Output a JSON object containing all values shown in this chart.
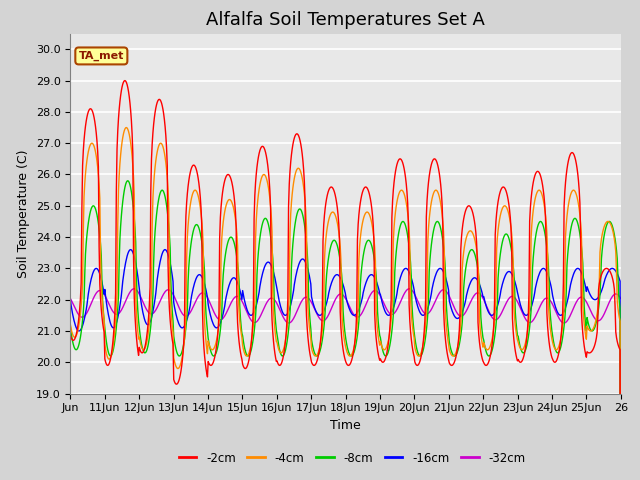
{
  "title": "Alfalfa Soil Temperatures Set A",
  "xlabel": "Time",
  "ylabel": "Soil Temperature (C)",
  "ylim": [
    19.0,
    30.5
  ],
  "yticks": [
    19.0,
    20.0,
    21.0,
    22.0,
    23.0,
    24.0,
    25.0,
    26.0,
    27.0,
    28.0,
    29.0,
    30.0
  ],
  "xlim_start": 10,
  "xlim_end": 26,
  "xtick_labels": [
    "Jun",
    "11Jun",
    "12Jun",
    "13Jun",
    "14Jun",
    "15Jun",
    "16Jun",
    "17Jun",
    "18Jun",
    "19Jun",
    "20Jun",
    "21Jun",
    "22Jun",
    "23Jun",
    "24Jun",
    "25Jun",
    "26"
  ],
  "xtick_positions": [
    10,
    11,
    12,
    13,
    14,
    15,
    16,
    17,
    18,
    19,
    20,
    21,
    22,
    23,
    24,
    25,
    26
  ],
  "series_colors": {
    "-2cm": "#FF0000",
    "-4cm": "#FF8C00",
    "-8cm": "#00CC00",
    "-16cm": "#0000FF",
    "-32cm": "#CC00CC"
  },
  "legend_label": "TA_met",
  "legend_box_color": "#FFFF99",
  "legend_box_edge": "#AA4400",
  "plot_bg_color": "#E8E8E8",
  "fig_bg_color": "#D4D4D4",
  "grid_color": "#FFFFFF",
  "title_fontsize": 13,
  "axis_label_fontsize": 9,
  "tick_fontsize": 8,
  "peaks_2cm": [
    28.1,
    29.0,
    28.4,
    26.3,
    26.0,
    26.9,
    27.3,
    25.6,
    25.6,
    26.5,
    26.5,
    25.0,
    25.6,
    26.1,
    26.7,
    23.0
  ],
  "peaks_4cm": [
    27.0,
    27.5,
    27.0,
    25.5,
    25.2,
    26.0,
    26.2,
    24.8,
    24.8,
    25.5,
    25.5,
    24.2,
    25.0,
    25.5,
    25.5,
    24.5
  ],
  "peaks_8cm": [
    25.0,
    25.8,
    25.5,
    24.4,
    24.0,
    24.6,
    24.9,
    23.9,
    23.9,
    24.5,
    24.5,
    23.6,
    24.1,
    24.5,
    24.6,
    24.5
  ],
  "peaks_16cm": [
    23.0,
    23.6,
    23.6,
    22.8,
    22.7,
    23.2,
    23.3,
    22.8,
    22.8,
    23.0,
    23.0,
    22.7,
    22.9,
    23.0,
    23.0,
    23.0
  ],
  "troughs_2cm": [
    20.7,
    19.9,
    20.3,
    19.3,
    19.9,
    19.8,
    19.9,
    19.9,
    19.9,
    20.0,
    19.9,
    19.9,
    19.9,
    20.0,
    20.0,
    20.3
  ],
  "troughs_4cm": [
    20.8,
    20.1,
    20.4,
    19.8,
    20.4,
    20.2,
    20.3,
    20.2,
    20.2,
    20.4,
    20.2,
    20.2,
    20.4,
    20.4,
    20.4,
    21.0
  ],
  "troughs_8cm": [
    20.4,
    20.2,
    20.3,
    20.2,
    20.2,
    20.2,
    20.2,
    20.2,
    20.2,
    20.2,
    20.2,
    20.2,
    20.2,
    20.3,
    20.3,
    21.0
  ],
  "troughs_16cm": [
    21.0,
    21.1,
    21.2,
    21.1,
    21.1,
    21.5,
    21.5,
    21.5,
    21.5,
    21.5,
    21.5,
    21.4,
    21.5,
    21.5,
    21.5,
    22.0
  ],
  "base_32cm": 21.8
}
